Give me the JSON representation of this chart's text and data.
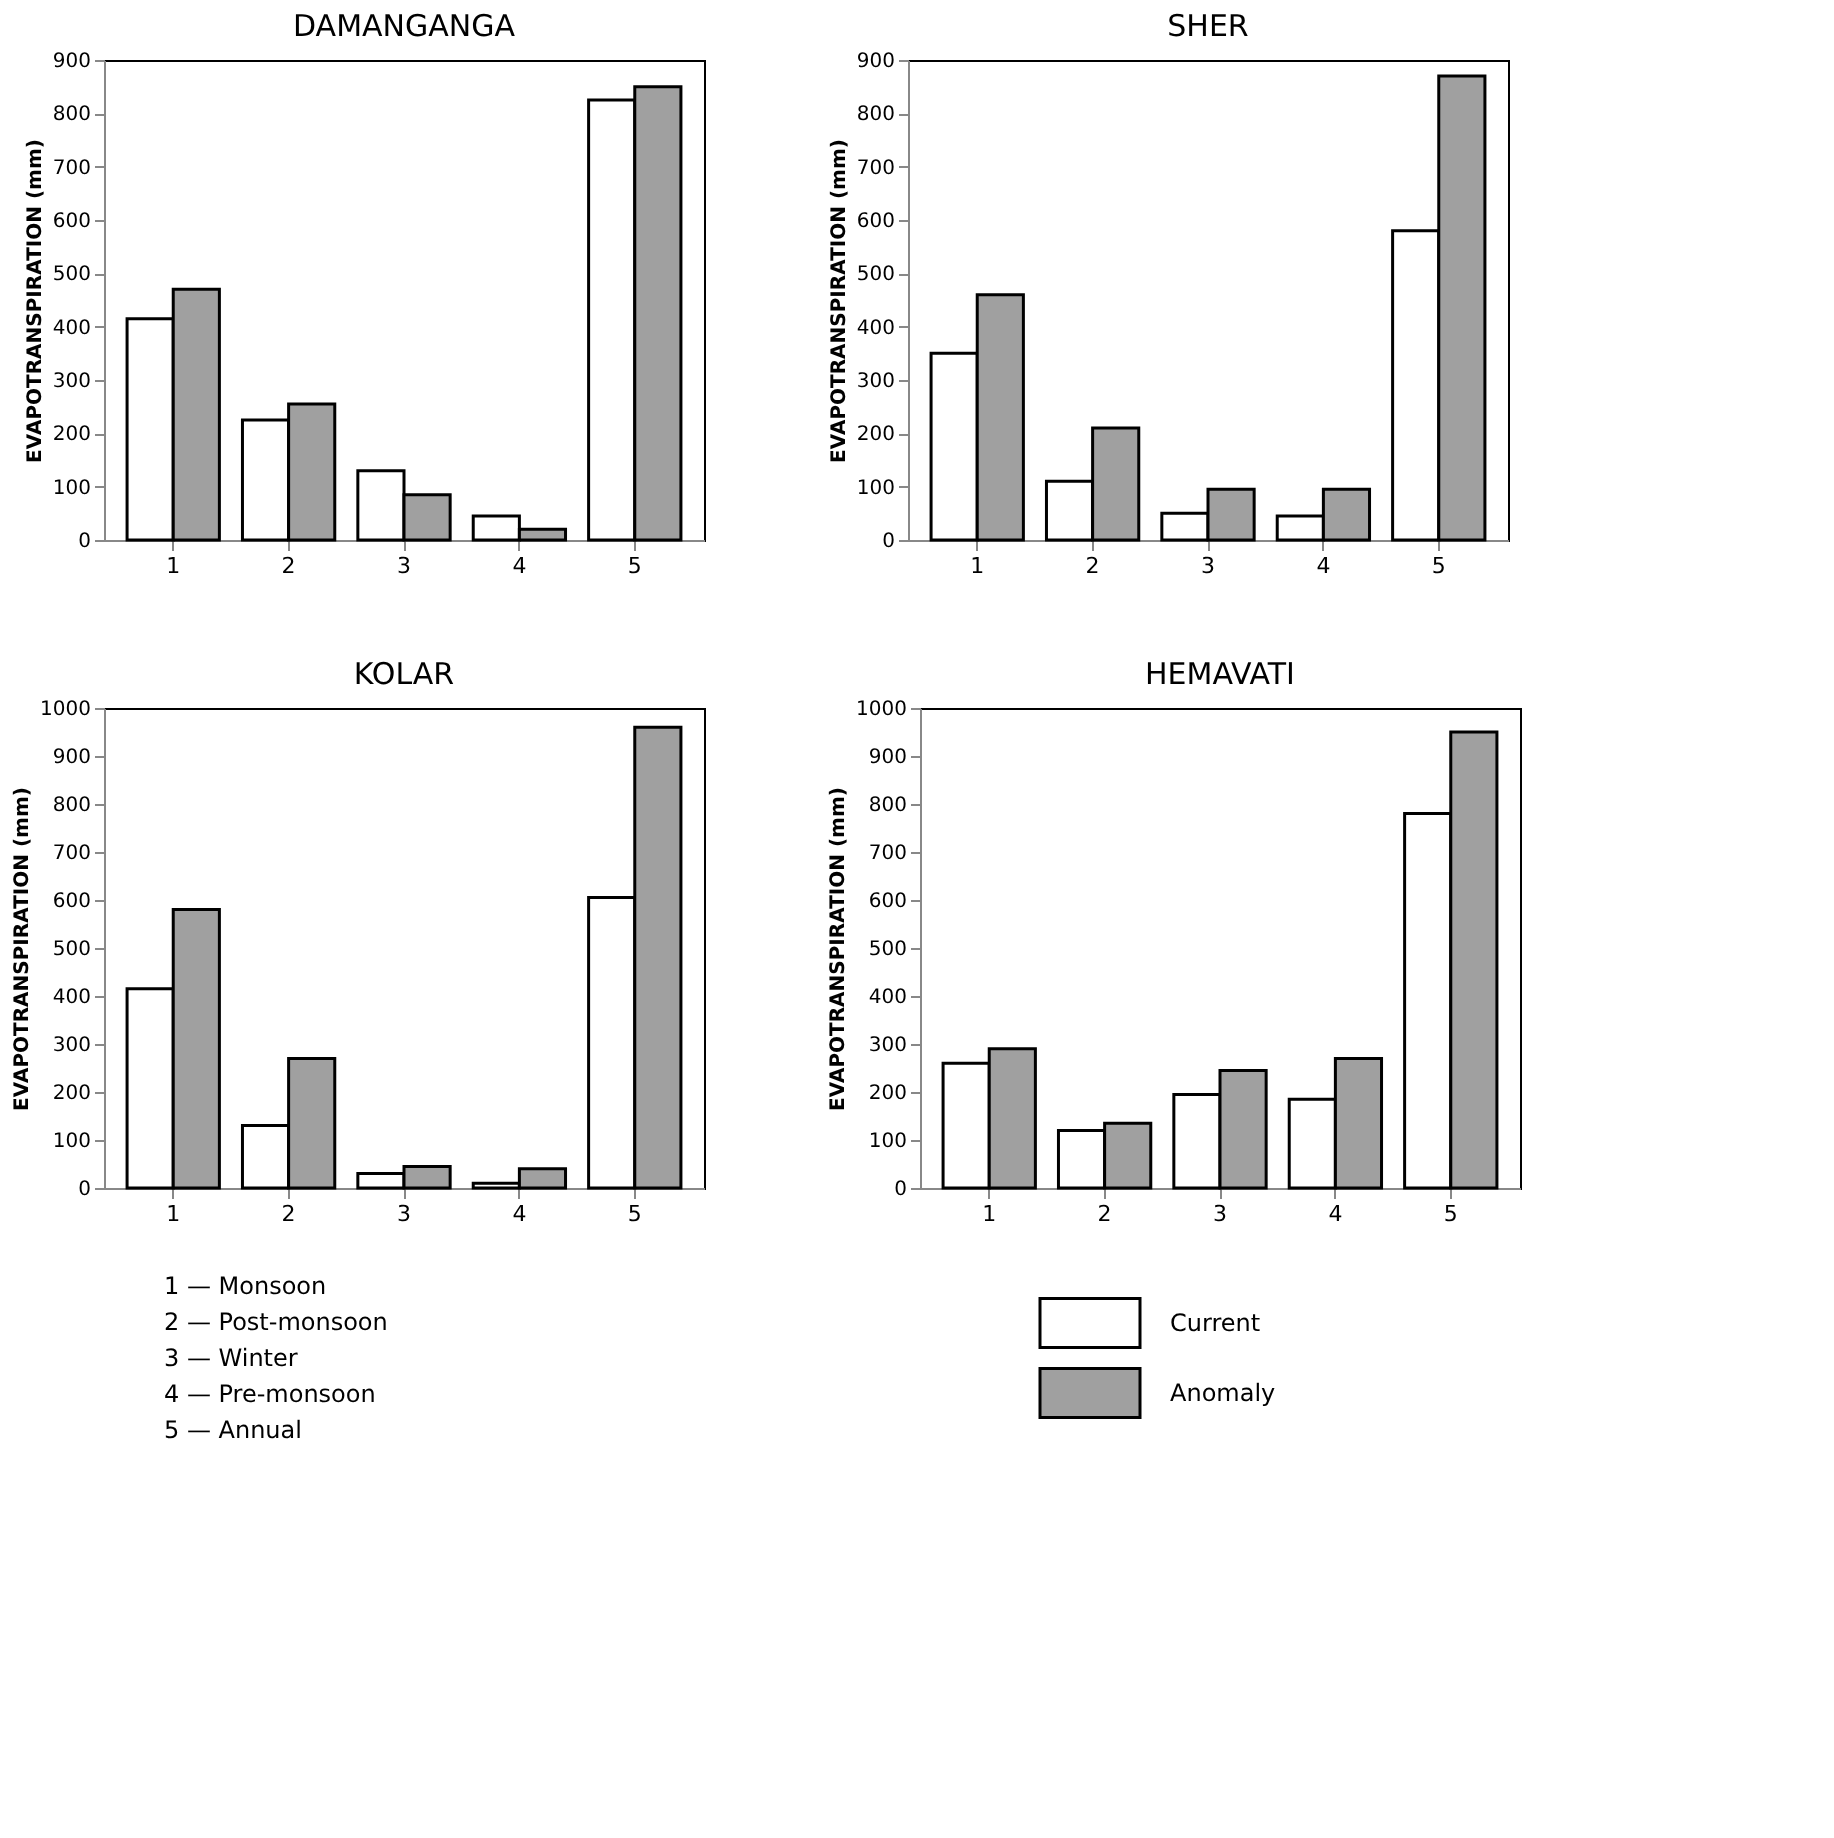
{
  "chart_data": [
    {
      "type": "bar",
      "title": "DAMANGANGA",
      "ylabel": "EVAPOTRANSPIRATION (mm)",
      "categories": [
        "1",
        "2",
        "3",
        "4",
        "5"
      ],
      "ylim": [
        0,
        900
      ],
      "yticks": [
        0,
        100,
        200,
        300,
        400,
        500,
        600,
        700,
        800,
        900
      ],
      "grid": false,
      "legend": false,
      "series": [
        {
          "color": "#ffffff",
          "values": [
            415,
            225,
            130,
            45,
            825
          ]
        },
        {
          "color": "#a0a0a0",
          "values": [
            470,
            255,
            85,
            20,
            850
          ]
        }
      ]
    },
    {
      "type": "bar",
      "title": "SHER",
      "ylabel": "EVAPOTRANSPIRATION (mm)",
      "categories": [
        "1",
        "2",
        "3",
        "4",
        "5"
      ],
      "ylim": [
        0,
        900
      ],
      "yticks": [
        0,
        100,
        200,
        300,
        400,
        500,
        600,
        700,
        800,
        900
      ],
      "grid": false,
      "legend": false,
      "series": [
        {
          "color": "#ffffff",
          "values": [
            350,
            110,
            50,
            45,
            580
          ]
        },
        {
          "color": "#a0a0a0",
          "values": [
            460,
            210,
            95,
            95,
            870
          ]
        }
      ]
    },
    {
      "type": "bar",
      "title": "KOLAR",
      "ylabel": "EVAPOTRANSPIRATION (mm)",
      "categories": [
        "1",
        "2",
        "3",
        "4",
        "5"
      ],
      "ylim": [
        0,
        1000
      ],
      "yticks": [
        0,
        100,
        200,
        300,
        400,
        500,
        600,
        700,
        800,
        900,
        1000
      ],
      "grid": false,
      "legend": false,
      "series": [
        {
          "color": "#ffffff",
          "values": [
            415,
            130,
            30,
            10,
            605
          ]
        },
        {
          "color": "#a0a0a0",
          "values": [
            580,
            270,
            45,
            40,
            960
          ]
        }
      ],
      "annotations": [
        "1 — Monsoon",
        "2 — Post-monsoon",
        "3 — Winter",
        "4 — Pre-monsoon",
        "5 — Annual"
      ]
    },
    {
      "type": "bar",
      "title": "HEMAVATI",
      "ylabel": "EVAPOTRANSPIRATION (mm)",
      "categories": [
        "1",
        "2",
        "3",
        "4",
        "5"
      ],
      "ylim": [
        0,
        1000
      ],
      "yticks": [
        0,
        100,
        200,
        300,
        400,
        500,
        600,
        700,
        800,
        900,
        1000
      ],
      "grid": false,
      "legend": "bottom",
      "series": [
        {
          "name": "Current",
          "color": "#ffffff",
          "values": [
            260,
            120,
            195,
            185,
            780
          ]
        },
        {
          "name": "Anomaly",
          "color": "#a0a0a0",
          "values": [
            290,
            135,
            245,
            270,
            950
          ]
        }
      ]
    }
  ]
}
